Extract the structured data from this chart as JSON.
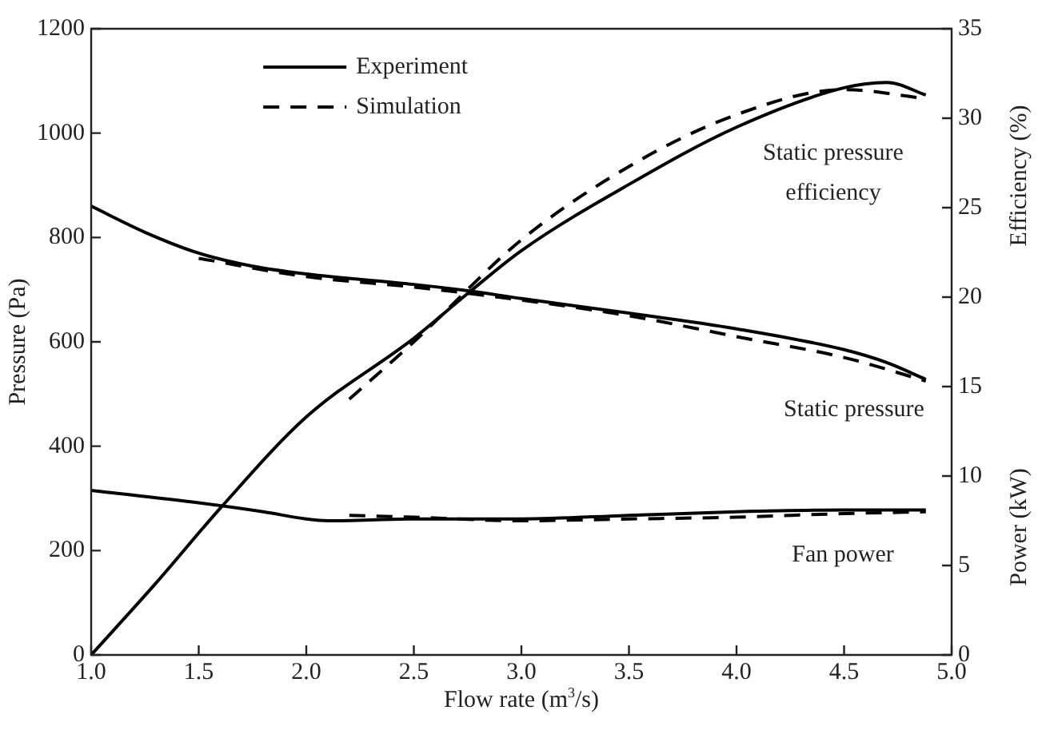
{
  "chart_data": {
    "type": "line",
    "xlabel": "Flow rate (m$^{3}$/s)",
    "ylabel": "Pressure (Pa)",
    "y2label": "Efficiency (%)",
    "xlim": [
      1,
      5
    ],
    "xticks": [
      {
        "value": 1,
        "label": "1.0"
      },
      {
        "value": 1.5,
        "label": "1.5"
      },
      {
        "value": 2,
        "label": "2.0"
      },
      {
        "value": 2.5,
        "label": "2.5"
      },
      {
        "value": 3,
        "label": "3.0"
      },
      {
        "value": 3.5,
        "label": "3.5"
      },
      {
        "value": 4,
        "label": "4.0"
      },
      {
        "value": 4.5,
        "label": "4.5"
      },
      {
        "value": 5,
        "label": "5.0"
      }
    ],
    "ylim": [
      0,
      1200
    ],
    "yticks": [
      0,
      200,
      400,
      600,
      800,
      1000,
      1200
    ],
    "y2lim": [
      0,
      35
    ],
    "y2ticks": [
      0,
      5,
      10,
      15,
      20,
      25,
      30,
      35
    ],
    "grid": false,
    "legend": "top left",
    "marker": "none",
    "annotations": [
      "Static pressure efficiency",
      "Static pressure",
      "Fan power",
      "Power (kW)"
    ],
    "series": [
      {
        "name": "Experiment",
        "color": "#000000",
        "line_style": "solid",
        "x": [
          1,
          1.25,
          1.5,
          1.75,
          2,
          2.5,
          2.75,
          3,
          3.5,
          4,
          4.5,
          4.7,
          4.88
        ],
        "values": [
          860,
          810,
          770,
          745,
          730,
          710,
          698,
          683,
          655,
          625,
          585,
          560,
          528
        ]
      },
      {
        "name": "Simulation",
        "color": "#000000",
        "line_style": "dashed",
        "x": [
          1.5,
          2,
          2.5,
          3,
          3.5,
          4,
          4.5,
          4.88
        ],
        "values": [
          760,
          725,
          705,
          680,
          650,
          610,
          570,
          525
        ]
      },
      {
        "color": "#000000",
        "line_style": "solid",
        "axis": "y2",
        "x": [
          1,
          1.3,
          1.6,
          2,
          2.5,
          2.75,
          3,
          3.5,
          4,
          4.5,
          4.7,
          4.88
        ],
        "values": [
          0,
          4,
          8.2,
          13.3,
          17.7,
          20.2,
          22.6,
          26.3,
          29.5,
          31.7,
          32,
          31.3
        ]
      },
      {
        "color": "#000000",
        "line_style": "dashed",
        "axis": "y2",
        "x": [
          2.2,
          2.5,
          3,
          3.5,
          4,
          4.5,
          4.88
        ],
        "values": [
          14.3,
          17.5,
          23.2,
          27.3,
          30.2,
          31.6,
          31.1
        ]
      },
      {
        "color": "#000000",
        "line_style": "solid",
        "axis": "y2",
        "x": [
          1,
          1.5,
          1.8,
          2,
          2.1,
          2.5,
          3,
          3.5,
          4,
          4.5,
          4.88
        ],
        "values": [
          9.2,
          8.5,
          8,
          7.6,
          7.5,
          7.6,
          7.6,
          7.8,
          8,
          8.1,
          8.1
        ]
      },
      {
        "color": "#000000",
        "line_style": "dashed",
        "axis": "y2",
        "x": [
          2.2,
          2.5,
          3,
          3.5,
          4,
          4.5,
          4.88
        ],
        "values": [
          7.8,
          7.7,
          7.5,
          7.6,
          7.7,
          7.9,
          8
        ]
      }
    ]
  }
}
